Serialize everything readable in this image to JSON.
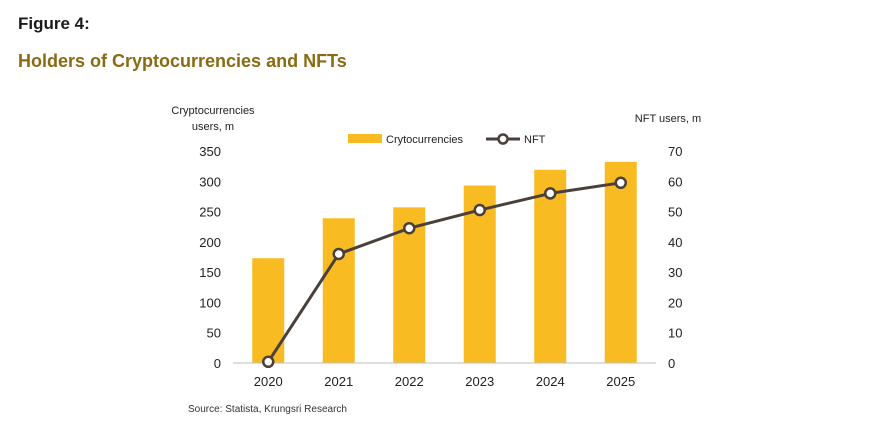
{
  "figure_label": "Figure 4:",
  "title": "Holders of Cryptocurrencies and NFTs",
  "source": "Source: Statista, Krungsri Research",
  "chart_data": {
    "type": "bar",
    "categories": [
      "2020",
      "2021",
      "2022",
      "2023",
      "2024",
      "2025"
    ],
    "series": [
      {
        "name": "Crytocurrencies",
        "type": "bar",
        "axis": "left",
        "color": "#f8bc22",
        "values": [
          173,
          239,
          257,
          293,
          319,
          332
        ]
      },
      {
        "name": "NFT",
        "type": "line",
        "axis": "right",
        "color": "#4a3f3b",
        "values": [
          0.4,
          36,
          44.5,
          50.5,
          56,
          59.5
        ]
      }
    ],
    "ylabel_left": [
      "Cryptocurrencies",
      "users, m"
    ],
    "ylabel_right": "NFT users, m",
    "ylim_left": [
      0,
      350
    ],
    "ylim_right": [
      0,
      70
    ],
    "yticks_left": [
      "0",
      "50",
      "100",
      "150",
      "200",
      "250",
      "300",
      "350"
    ],
    "yticks_right": [
      "0",
      "10",
      "20",
      "30",
      "40",
      "50",
      "60",
      "70"
    ],
    "grid": false,
    "legend_position": "top"
  }
}
